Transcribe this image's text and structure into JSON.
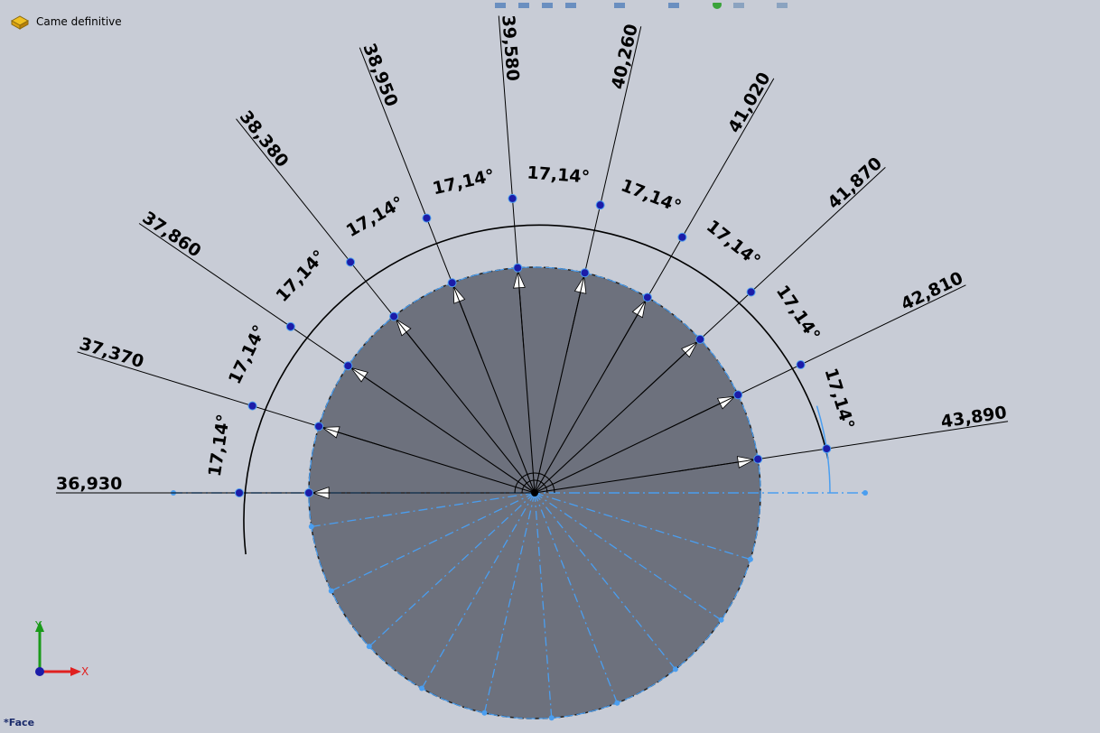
{
  "feature_tree": {
    "part_name": "Came definitive"
  },
  "status": {
    "selection_label": "*Face"
  },
  "triad": {
    "x_label": "X",
    "y_label": "Y"
  },
  "sketch": {
    "radial_dimensions": [
      "36,930",
      "37,370",
      "37,860",
      "38,380",
      "38,950",
      "39,580",
      "40,260",
      "41,020",
      "41,870",
      "42,810",
      "43,890"
    ],
    "angle_label": "17,14°",
    "angle_step_deg": 17.14,
    "angles_count": 10
  },
  "colors": {
    "background": "#c8ccd6",
    "face_fill": "#6d717d",
    "construction_line": "#4a9ef0",
    "selected_dimension": "#4a9ef0",
    "points": "#1c1ca8"
  }
}
